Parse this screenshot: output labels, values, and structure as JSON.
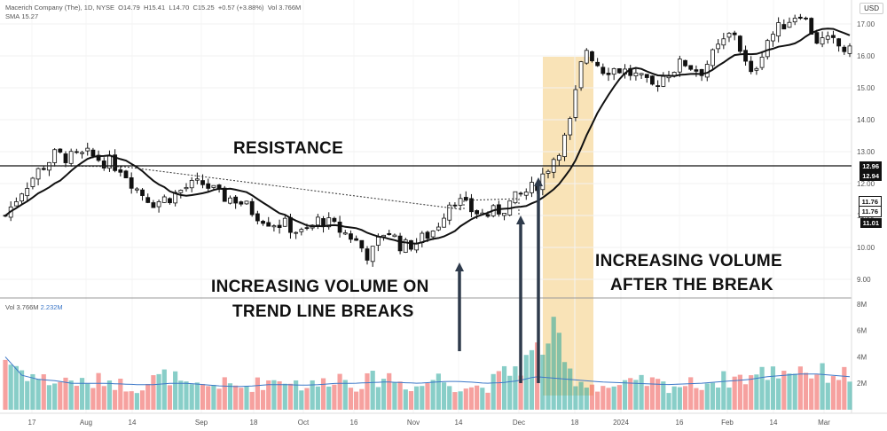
{
  "header": {
    "symbol": "Macerich Company (The), 1D, NYSE",
    "open_label": "O",
    "open": "14.79",
    "high_label": "H",
    "high": "15.41",
    "low_label": "L",
    "low": "14.70",
    "close_label": "C",
    "close": "15.25",
    "change": "+0.57 (+3.88%)",
    "vol_label": "Vol",
    "vol": "3.766M",
    "sma_label": "SMA",
    "sma": "15.27",
    "currency": "USD"
  },
  "volume_pane": {
    "label": "Vol",
    "vol": "3.766M",
    "vol_ma": "2.232M"
  },
  "annotations": {
    "resistance": "RESISTANCE",
    "trend_line_breaks_1": "INCREASING VOLUME ON",
    "trend_line_breaks_2": "TREND LINE BREAKS",
    "after_break_1": "INCREASING VOLUME",
    "after_break_2": "AFTER THE BREAK"
  },
  "price_tags": [
    "12.96",
    "12.94",
    "11.76",
    "11.76",
    "11.01"
  ],
  "colors": {
    "up": "#26a69a",
    "down": "#ef5350",
    "sma": "#111111",
    "highlight": "#f8deaa",
    "vol_ma": "#3d78c8"
  },
  "chart_data": {
    "type": "candlestick",
    "x_ticks": [
      "17",
      "Aug",
      "14",
      "Sep",
      "18",
      "Oct",
      "16",
      "Nov",
      "14",
      "Dec",
      "18",
      "2024",
      "16",
      "Feb",
      "14",
      "Mar"
    ],
    "y_ticks": [
      "9.00",
      "10.00",
      "11.00",
      "12.00",
      "13.00",
      "14.00",
      "15.00",
      "16.00",
      "17.00"
    ],
    "ylim": [
      8.6,
      17.9
    ],
    "vol_ticks": [
      "2M",
      "4M",
      "6M",
      "8M"
    ],
    "vol_ylim": [
      0,
      8.3
    ],
    "resistance": 12.95,
    "price_path": [
      11.0,
      11.8,
      12.4,
      12.9,
      12.8,
      12.9,
      12.7,
      12.5,
      11.8,
      11.4,
      11.6,
      11.9,
      12.0,
      11.6,
      11.5,
      11.1,
      10.8,
      10.7,
      10.4,
      10.9,
      10.6,
      10.3,
      9.7,
      10.6,
      10.0,
      10.2,
      10.6,
      11.6,
      11.2,
      11.0,
      11.2,
      11.6,
      11.9,
      12.7,
      13.6,
      16.3,
      15.6,
      15.6,
      15.4,
      15.0,
      15.5,
      15.8,
      15.5,
      16.2,
      16.8,
      15.3,
      16.5,
      17.0,
      17.4,
      16.5,
      16.4,
      16.1
    ],
    "volume_path": [
      3.9,
      3.0,
      2.4,
      2.1,
      2.3,
      1.8,
      2.4,
      1.9,
      1.7,
      2.3,
      2.6,
      1.6,
      1.8,
      2.0,
      1.7,
      1.9,
      2.2,
      2.4,
      1.8,
      1.9,
      2.7,
      1.9,
      2.2,
      2.6,
      2.0,
      1.7,
      2.5,
      1.9,
      1.8,
      1.7,
      2.6,
      3.3,
      4.2,
      5.9,
      2.8,
      2.0,
      1.8,
      1.7,
      2.0,
      2.1,
      1.8,
      1.9,
      2.0,
      2.2,
      2.4,
      2.5,
      2.8,
      3.0,
      3.2,
      2.7,
      2.8,
      2.5
    ],
    "vol_ma_path": [
      4.0,
      2.6,
      2.3,
      2.2,
      2.0,
      2.0,
      2.0,
      1.95,
      1.9,
      1.9,
      2.0,
      2.0,
      1.9,
      1.8,
      1.75,
      1.8,
      1.9,
      1.9,
      1.85,
      1.9,
      2.0,
      2.0,
      2.05,
      2.1,
      2.05,
      2.0,
      2.1,
      2.15,
      2.1,
      2.0,
      2.05,
      2.2,
      2.5,
      2.4,
      2.3,
      2.2,
      2.1,
      2.05,
      2.0,
      1.95,
      1.9,
      1.95,
      2.0,
      2.1,
      2.2,
      2.3,
      2.5,
      2.6,
      2.7,
      2.7,
      2.6,
      2.5
    ],
    "highlight_zone_between": [
      "Dec",
      "18"
    ],
    "candles_in_pane": 155
  }
}
